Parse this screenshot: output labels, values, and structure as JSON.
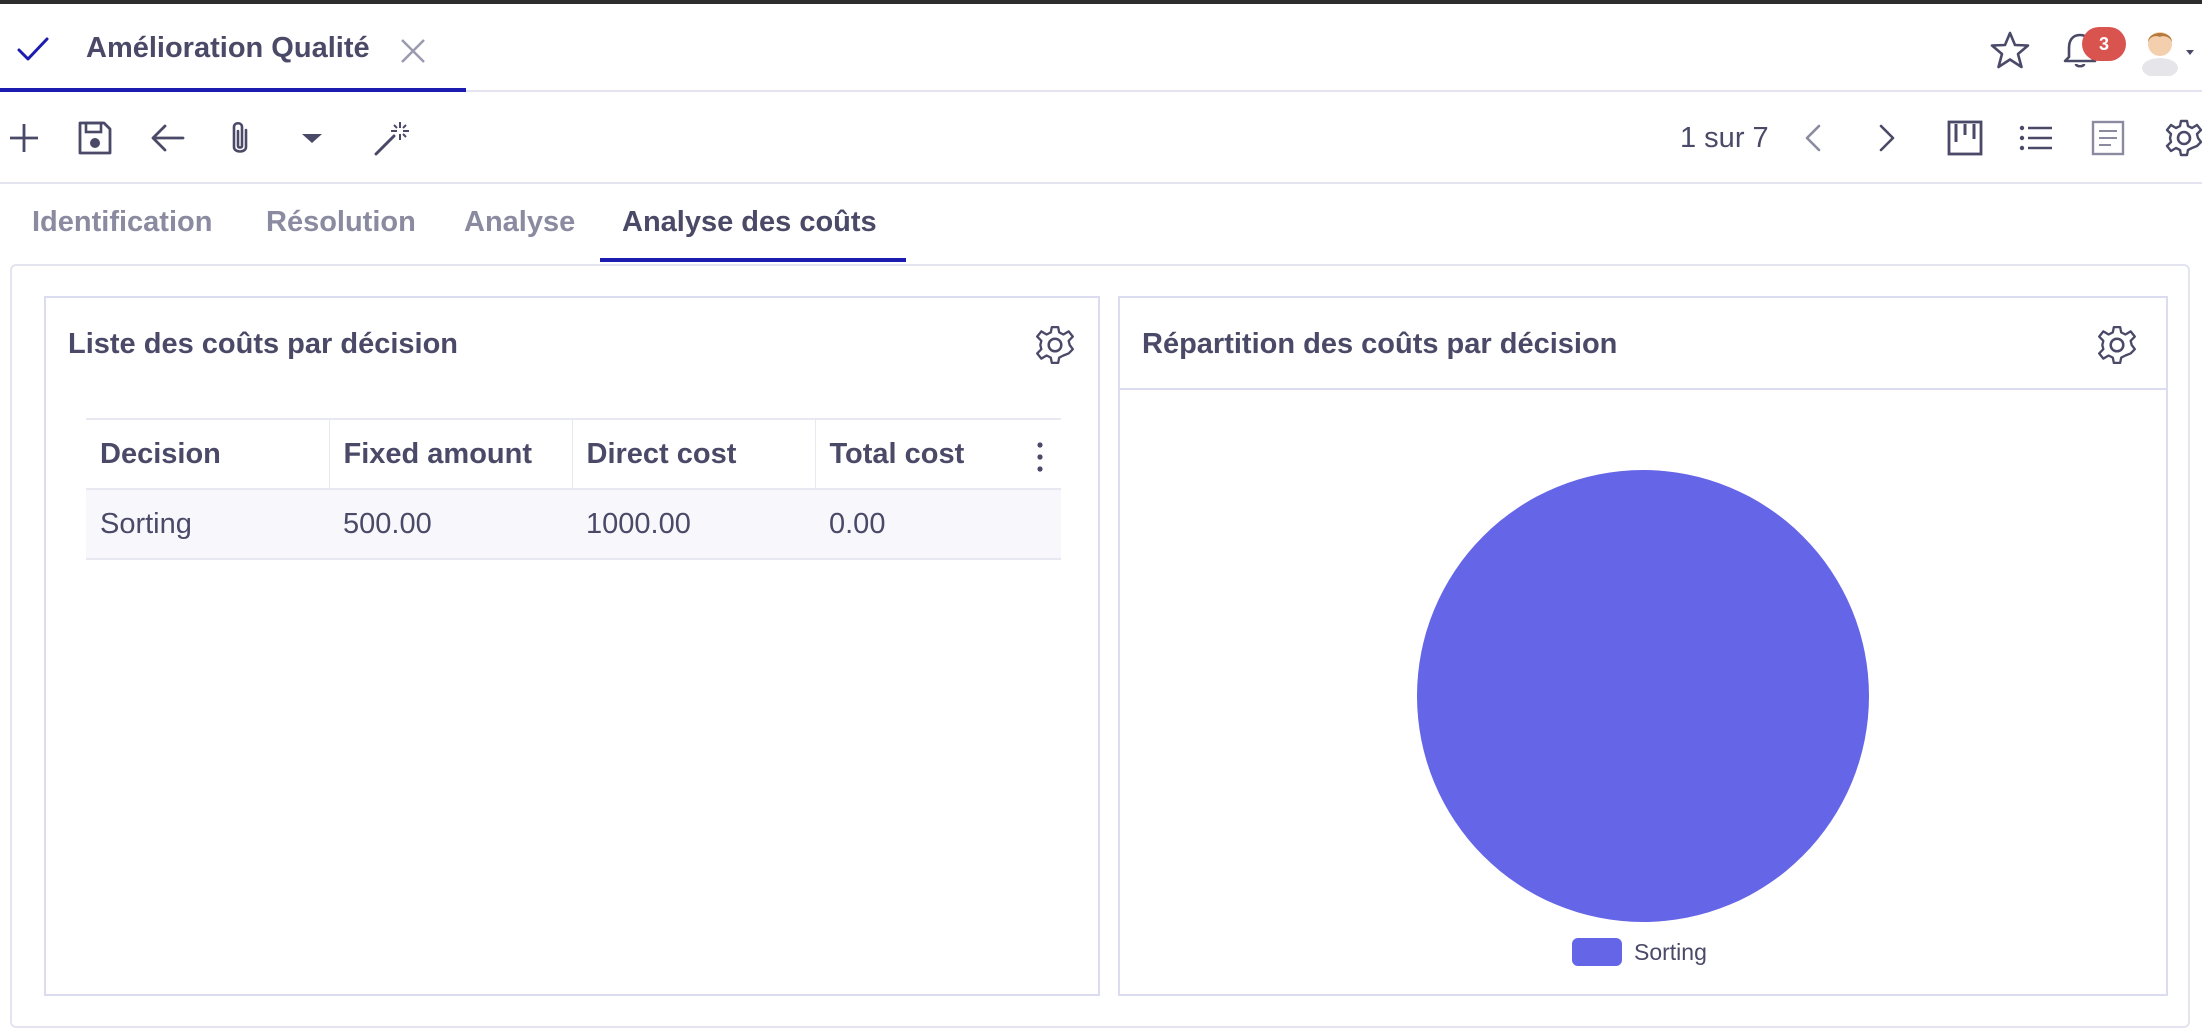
{
  "header": {
    "document_title": "Amélioration Qualité",
    "notification_count": "3",
    "icons": [
      "check-icon",
      "close-icon",
      "star-icon",
      "bell-icon",
      "user-avatar"
    ]
  },
  "toolbar": {
    "icons": [
      "plus-icon",
      "save-icon",
      "back-arrow-icon",
      "paperclip-icon",
      "caret-down-icon",
      "magic-wand-icon",
      "chevron-left-icon",
      "chevron-right-icon",
      "kanban-view-icon",
      "list-view-icon",
      "form-view-icon",
      "gear-icon"
    ],
    "pager_text": "1 sur 7"
  },
  "form_tabs": [
    {
      "label": "Identification",
      "active": false
    },
    {
      "label": "Résolution",
      "active": false
    },
    {
      "label": "Analyse",
      "active": false
    },
    {
      "label": "Analyse des coûts",
      "active": true
    }
  ],
  "left_panel": {
    "title": "Liste des coûts par décision",
    "table": {
      "columns": [
        "Decision",
        "Fixed amount",
        "Direct cost",
        "Total cost"
      ],
      "rows": [
        [
          "Sorting",
          "500.00",
          "1000.00",
          "0.00"
        ]
      ]
    }
  },
  "right_panel": {
    "title": "Répartition des coûts par décision"
  },
  "chart_data": {
    "type": "pie",
    "categories": [
      "Sorting"
    ],
    "values": [
      1
    ],
    "colors": [
      "#6565e8"
    ],
    "legend": "bottom"
  },
  "colors": {
    "accent": "#1c1cb0",
    "text": "#4a4a68",
    "muted_tab": "#8a8aa0",
    "badge": "#d9534f",
    "pie": "#6565e8"
  }
}
